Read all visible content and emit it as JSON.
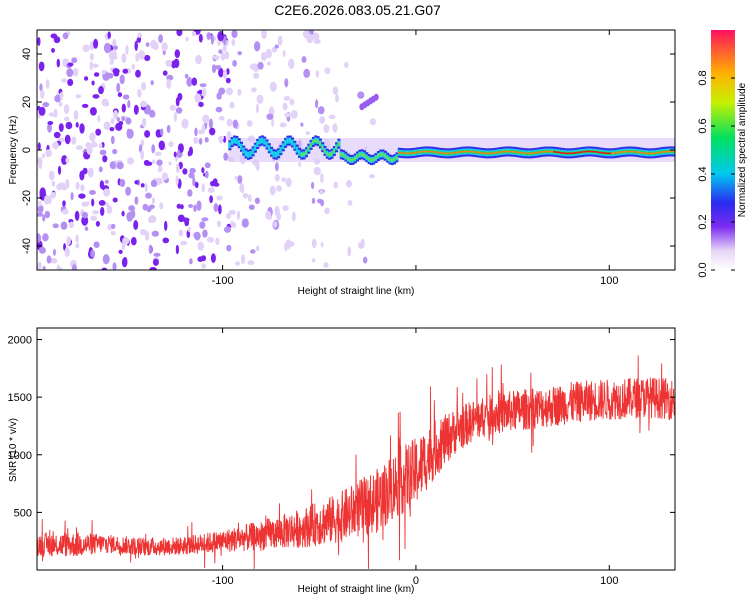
{
  "title": "C2E6.2026.083.05.21.G07",
  "colors": {
    "background": "#ffffff",
    "snr_line": "#ee3333",
    "axis": "#000000"
  },
  "chart_data": [
    {
      "type": "heatmap",
      "title": "C2E6.2026.083.05.21.G07",
      "xlabel": "Height of straight line (km)",
      "ylabel": "Frequency (Hz)",
      "xlim": [
        -196,
        134
      ],
      "ylim": [
        -50,
        50
      ],
      "xticks": [
        -100,
        0,
        100
      ],
      "xtick_labels": [
        "-100",
        "",
        "100"
      ],
      "yticks": [
        -40,
        -20,
        0,
        20,
        40
      ],
      "ytick_labels": [
        "-40",
        "-20",
        "0",
        "20",
        "40"
      ],
      "description_points": {
        "tone_frequency_hz": 0,
        "tone_start_km": -97,
        "strong_tone_start_km": -10
      },
      "colorbar": {
        "label": "Normalized spectral amplitude",
        "range": [
          0,
          1
        ],
        "ticks": [
          0.0,
          0.2,
          0.4,
          0.6,
          0.8
        ],
        "tick_labels": [
          "0.0",
          "0.2",
          "0.4",
          "0.6",
          "0.8"
        ]
      }
    },
    {
      "type": "line",
      "xlabel": "Height of straight line (km)",
      "ylabel": "SNR (10 * v/v)",
      "xlim": [
        -196,
        134
      ],
      "ylim": [
        0,
        2100
      ],
      "xticks": [
        -100,
        0,
        100
      ],
      "xtick_labels": [
        "-100",
        "0",
        "100"
      ],
      "yticks": [
        500,
        1000,
        1500,
        2000
      ],
      "ytick_labels": [
        "500",
        "1000",
        "1500",
        "2000"
      ],
      "series": [
        {
          "name": "SNR",
          "x": [
            -196,
            -175,
            -160,
            -140,
            -120,
            -100,
            -80,
            -60,
            -40,
            -20,
            -10,
            0,
            10,
            20,
            30,
            40,
            50,
            60,
            70,
            80,
            90,
            100,
            110,
            120,
            134
          ],
          "y": [
            220,
            220,
            230,
            200,
            210,
            250,
            300,
            360,
            450,
            600,
            750,
            850,
            1050,
            1200,
            1300,
            1350,
            1380,
            1400,
            1420,
            1450,
            1470,
            1480,
            1490,
            1500,
            1480
          ],
          "spread": [
            100,
            110,
            80,
            80,
            80,
            100,
            130,
            170,
            220,
            280,
            300,
            300,
            250,
            200,
            180,
            180,
            180,
            180,
            180,
            180,
            180,
            180,
            180,
            180,
            180
          ]
        }
      ]
    }
  ]
}
